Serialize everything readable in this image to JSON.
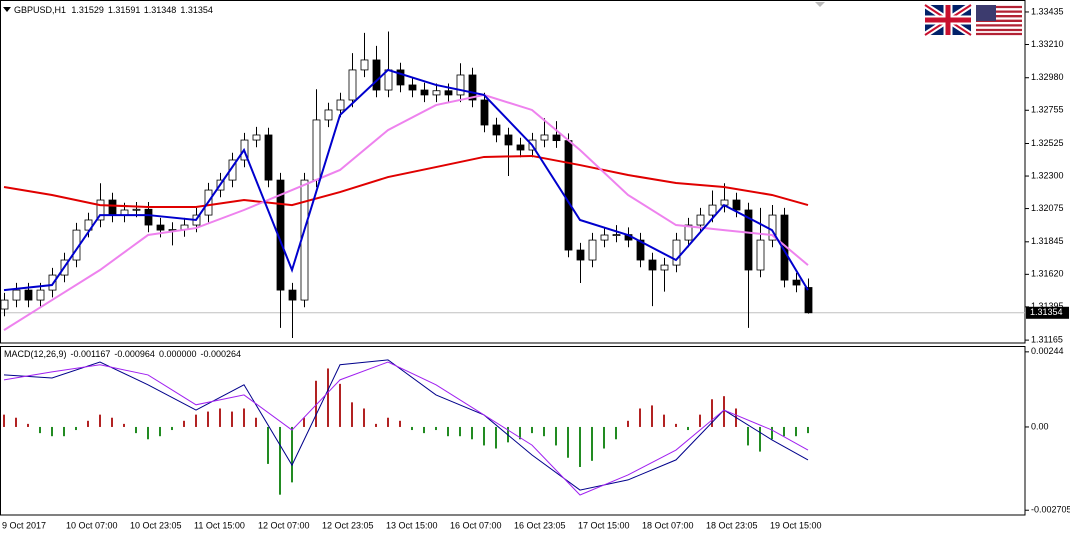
{
  "chart_data": [
    {
      "type": "candlestick",
      "symbol": "GBPUSD,H1",
      "ohlc": [
        1.31529,
        1.31591,
        1.31348,
        1.31354
      ],
      "last_price": 1.31354,
      "time_labels": [
        "9 Oct 2017",
        "10 Oct 07:00",
        "10 Oct 23:05",
        "11 Oct 15:00",
        "12 Oct 07:00",
        "12 Oct 23:05",
        "13 Oct 15:00",
        "16 Oct 07:00",
        "16 Oct 23:05",
        "17 Oct 15:00",
        "18 Oct 07:00",
        "18 Oct 23:05",
        "19 Oct 15:00"
      ],
      "open": [
        1.3138,
        1.31442,
        1.31511,
        1.31442,
        1.31511,
        1.31615,
        1.31719,
        1.31926,
        1.31996,
        1.32134,
        1.3203,
        1.32065,
        1.3207,
        1.31961,
        1.31926,
        1.3193,
        1.31961,
        1.3203,
        1.32203,
        1.32272,
        1.32411,
        1.32549,
        1.32584,
        1.32272,
        1.31511,
        1.31442,
        1.32272,
        1.32688,
        1.32757,
        1.32826,
        1.33034,
        1.33103,
        1.32895,
        1.33034,
        1.3293,
        1.32895,
        1.32861,
        1.3289,
        1.32861,
        1.32999,
        1.32826,
        1.32653,
        1.32584,
        1.32515,
        1.3248,
        1.32549,
        1.32584,
        1.32545,
        1.31788,
        1.31719,
        1.31857,
        1.31892,
        1.31895,
        1.31857,
        1.31719,
        1.3165,
        1.31684,
        1.31857,
        1.31961,
        1.3203,
        1.32099,
        1.32134,
        1.32065,
        1.3165,
        1.31857,
        1.3203,
        1.3158,
        1.31529
      ],
      "high": [
        1.31492,
        1.31561,
        1.31561,
        1.31561,
        1.31665,
        1.31769,
        1.31976,
        1.32046,
        1.3225,
        1.32184,
        1.32115,
        1.3212,
        1.3212,
        1.32011,
        1.3198,
        1.32011,
        1.3208,
        1.32253,
        1.32322,
        1.32461,
        1.32599,
        1.3264,
        1.32634,
        1.32322,
        1.31561,
        1.32322,
        1.329,
        1.32807,
        1.32876,
        1.3315,
        1.3329,
        1.332,
        1.333,
        1.33084,
        1.3298,
        1.32945,
        1.3294,
        1.3294,
        1.3308,
        1.33049,
        1.32876,
        1.32703,
        1.32634,
        1.32565,
        1.32599,
        1.327,
        1.3268,
        1.32595,
        1.31838,
        1.31907,
        1.31942,
        1.3196,
        1.31945,
        1.31907,
        1.31769,
        1.31734,
        1.31907,
        1.32011,
        1.3208,
        1.322,
        1.3225,
        1.32184,
        1.32115,
        1.3208,
        1.321,
        1.3208,
        1.3163,
        1.31591
      ],
      "low": [
        1.3133,
        1.31392,
        1.31392,
        1.31392,
        1.31461,
        1.31565,
        1.31669,
        1.31876,
        1.31946,
        1.3198,
        1.3198,
        1.32015,
        1.31911,
        1.31876,
        1.3182,
        1.3188,
        1.31911,
        1.3198,
        1.32153,
        1.32222,
        1.32361,
        1.32499,
        1.32222,
        1.3125,
        1.3118,
        1.31392,
        1.32222,
        1.32638,
        1.32707,
        1.32776,
        1.32984,
        1.32845,
        1.32845,
        1.3288,
        1.32845,
        1.32811,
        1.32811,
        1.32811,
        1.32811,
        1.32776,
        1.32603,
        1.32534,
        1.323,
        1.3243,
        1.3243,
        1.32499,
        1.32495,
        1.31738,
        1.3156,
        1.31669,
        1.31807,
        1.31842,
        1.31807,
        1.31669,
        1.314,
        1.315,
        1.31634,
        1.31807,
        1.31911,
        1.3198,
        1.32049,
        1.32015,
        1.3125,
        1.316,
        1.31807,
        1.3153,
        1.31496,
        1.31348
      ],
      "close": [
        1.31442,
        1.31511,
        1.31442,
        1.31511,
        1.31615,
        1.31719,
        1.31926,
        1.31996,
        1.32134,
        1.3203,
        1.32065,
        1.3207,
        1.31961,
        1.31926,
        1.3193,
        1.31961,
        1.3203,
        1.32203,
        1.32272,
        1.32411,
        1.32549,
        1.32584,
        1.32272,
        1.31511,
        1.31442,
        1.32272,
        1.32688,
        1.32757,
        1.32826,
        1.33034,
        1.33103,
        1.32895,
        1.33034,
        1.3293,
        1.32895,
        1.32861,
        1.3289,
        1.32861,
        1.32999,
        1.32826,
        1.32653,
        1.32584,
        1.32515,
        1.3248,
        1.32549,
        1.32584,
        1.32545,
        1.31788,
        1.31719,
        1.31857,
        1.31892,
        1.31895,
        1.31857,
        1.31719,
        1.3165,
        1.31684,
        1.31857,
        1.31961,
        1.3203,
        1.32099,
        1.32134,
        1.32065,
        1.3165,
        1.31857,
        1.3203,
        1.3158,
        1.31546,
        1.31354
      ],
      "up_color": "#ffffff",
      "down_color": "#000000",
      "wick_color": "#000000",
      "lines": [
        {
          "color": "#e00000",
          "x": [
            0,
            4,
            8,
            12,
            16,
            20,
            24,
            28,
            32,
            36,
            40,
            44,
            48,
            52,
            56,
            60,
            64,
            67
          ],
          "values": [
            1.32224,
            1.32169,
            1.32099,
            1.32086,
            1.32086,
            1.32134,
            1.32099,
            1.32189,
            1.32293,
            1.32362,
            1.32432,
            1.32439,
            1.32376,
            1.32307,
            1.32252,
            1.32224,
            1.32169,
            1.32099
          ]
        },
        {
          "color": "#ee82ee",
          "x": [
            0,
            4,
            8,
            12,
            16,
            20,
            24,
            28,
            32,
            36,
            40,
            44,
            48,
            52,
            56,
            60,
            64,
            67
          ],
          "values": [
            1.31234,
            1.31442,
            1.3165,
            1.31892,
            1.3194,
            1.32065,
            1.32203,
            1.32342,
            1.32618,
            1.32791,
            1.32861,
            1.32757,
            1.3248,
            1.32169,
            1.31961,
            1.31926,
            1.31892,
            1.31684
          ]
        },
        {
          "color": "#0000cd",
          "x": [
            0,
            4,
            8,
            12,
            16,
            20,
            24,
            28,
            32,
            36,
            40,
            44,
            48,
            52,
            56,
            60,
            64,
            67
          ],
          "values": [
            1.31511,
            1.31546,
            1.3203,
            1.3203,
            1.31996,
            1.3248,
            1.3165,
            1.32722,
            1.33034,
            1.3293,
            1.32861,
            1.32515,
            1.31996,
            1.31892,
            1.31719,
            1.32099,
            1.31926,
            1.31511
          ]
        }
      ],
      "ylim": [
        1.31145,
        1.33497
      ],
      "yticks": [
        1.33435,
        {
          "value": 1.3321,
          "label": "1.33210"
        },
        {
          "value": 1.3298,
          "label": "1.32980"
        },
        1.32755,
        1.32525,
        {
          "value": 1.323,
          "label": "1.32300"
        },
        1.32075,
        1.31845,
        {
          "value": 1.3162,
          "label": "1.31620"
        },
        1.31395,
        1.31165
      ]
    },
    {
      "type": "macd",
      "label": "MACD(12,26,9)",
      "params": [
        -0.001167,
        -0.000964,
        {
          "value": 0,
          "label": "0.000000"
        },
        -0.000264
      ],
      "histogram": [
        0.0004,
        0.0003,
        0.0001,
        -0.0002,
        -0.0003,
        -0.0003,
        -0.0001,
        0.0002,
        0.0004,
        0.0003,
        0.0001,
        -0.0002,
        -0.0004,
        -0.0003,
        -0.0001,
        0.0002,
        0.0004,
        0.0005,
        0.0006,
        0.0005,
        0.0006,
        0.0003,
        -0.0012,
        -0.0022,
        -0.0018,
        0.0003,
        0.0015,
        0.0019,
        0.0014,
        0.0008,
        0.0006,
        0.0001,
        0.0003,
        0.0002,
        -0.0001,
        -0.0002,
        -0.0001,
        -0.0003,
        -0.0003,
        -0.0004,
        -0.0006,
        -0.0007,
        -0.0005,
        -0.0004,
        -0.0002,
        -0.0003,
        -0.0006,
        -0.001,
        -0.0013,
        -0.0011,
        -0.0007,
        -0.0004,
        0.0002,
        0.0006,
        0.0007,
        0.0004,
        0.0001,
        -0.0001,
        0.0004,
        0.0009,
        0.001,
        0.0006,
        -0.0006,
        -0.0008,
        -0.0004,
        -0.0003,
        -0.0003,
        -0.0002
      ],
      "pos_color": "#b22222",
      "neg_color": "#228b22",
      "lines": [
        {
          "color": "#00008b",
          "x": [
            0,
            4,
            8,
            12,
            16,
            20,
            24,
            28,
            32,
            36,
            40,
            44,
            48,
            52,
            56,
            60,
            64,
            67
          ],
          "values": [
            0.00169,
            0.00159,
            0.00211,
            0.00137,
            0.00055,
            0.00137,
            -0.00124,
            0.00202,
            0.00218,
            0.00104,
            0.00039,
            -0.00091,
            -0.00205,
            -0.00172,
            -0.00107,
            0.00055,
            -0.00042,
            -0.00107
          ]
        },
        {
          "color": "#a020f0",
          "x": [
            0,
            4,
            8,
            12,
            16,
            20,
            24,
            28,
            32,
            36,
            40,
            44,
            48,
            52,
            56,
            60,
            64,
            67
          ],
          "values": [
            0.00153,
            0.00179,
            0.00202,
            0.00169,
            0.00072,
            0.00104,
            -0.0001,
            0.00153,
            0.00211,
            0.00137,
            0.00039,
            -0.00059,
            -0.00221,
            -0.00156,
            -0.00075,
            0.00055,
            -0.0001,
            -0.00075
          ]
        }
      ],
      "ylim": [
        -0.00286,
        0.00263
      ],
      "yticks": [
        0.00244,
        {
          "value": 0,
          "label": "0.00"
        },
        -0.002705
      ]
    }
  ]
}
